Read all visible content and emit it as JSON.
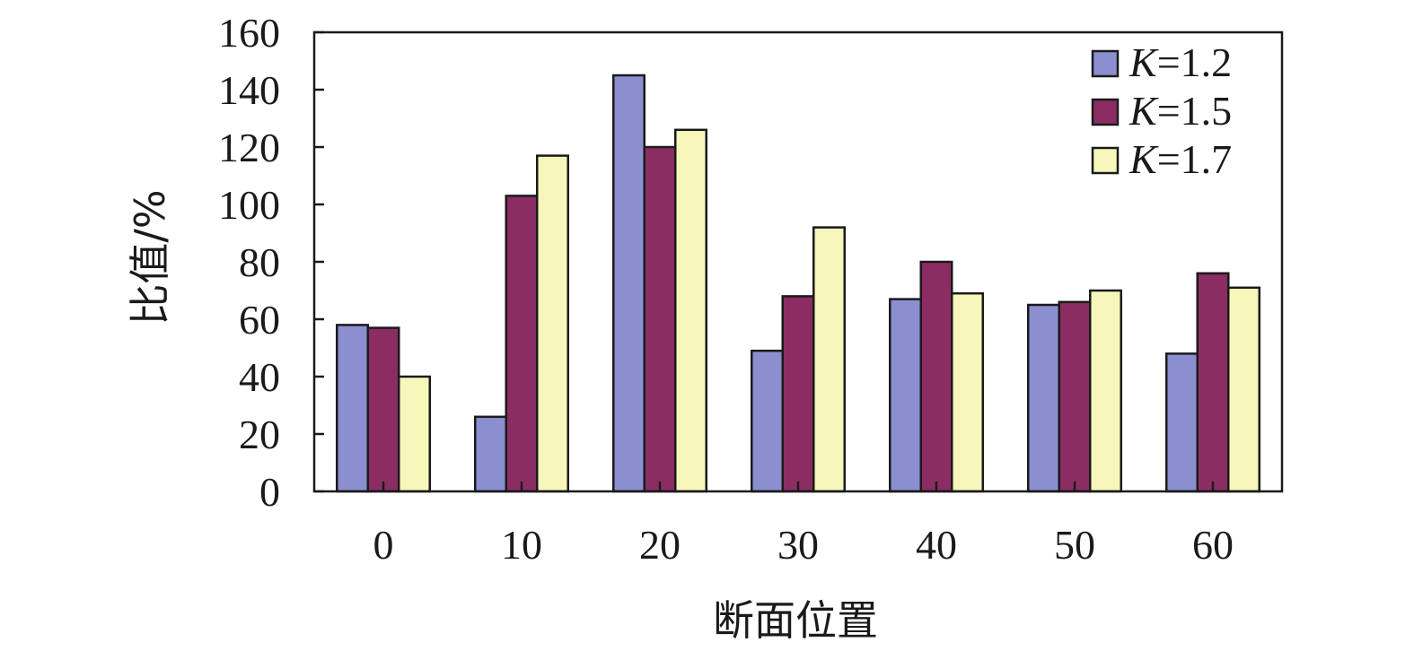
{
  "chart_data": {
    "type": "bar",
    "title": "",
    "xlabel": "断面位置",
    "ylabel": "比值/%",
    "categories": [
      "0",
      "10",
      "20",
      "30",
      "40",
      "50",
      "60"
    ],
    "series": [
      {
        "name": "K=1.2",
        "legend_var": "K",
        "legend_rest": "=1.2",
        "color": "#8b8fd0",
        "values": [
          58,
          26,
          145,
          49,
          67,
          65,
          48
        ]
      },
      {
        "name": "K=1.5",
        "legend_var": "K",
        "legend_rest": "=1.5",
        "color": "#8b2c63",
        "values": [
          57,
          103,
          120,
          68,
          80,
          66,
          76
        ]
      },
      {
        "name": "K=1.7",
        "legend_var": "K",
        "legend_rest": "=1.7",
        "color": "#f7f7bb",
        "values": [
          40,
          117,
          126,
          92,
          69,
          70,
          71
        ]
      }
    ],
    "ylim": [
      0,
      160
    ],
    "yticks": [
      0,
      20,
      40,
      60,
      80,
      100,
      120,
      140,
      160
    ],
    "grid": false,
    "legend_position": "top-right"
  }
}
